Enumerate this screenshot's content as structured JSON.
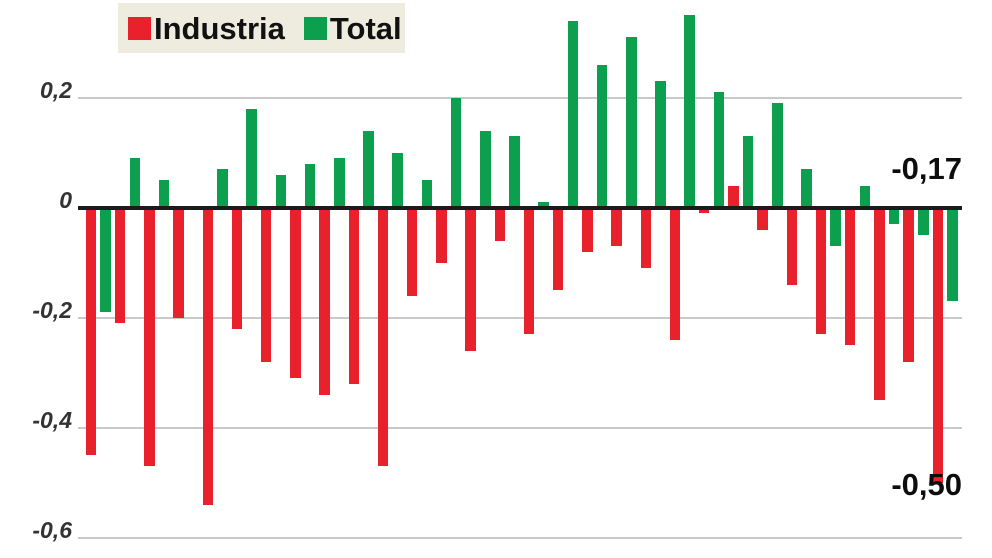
{
  "legend": {
    "items": [
      {
        "label": "Industria",
        "color": "#e8212c"
      },
      {
        "label": "Total",
        "color": "#0ca04e"
      }
    ]
  },
  "annotations": {
    "total_last": "-0,17",
    "industria_last": "-0,50"
  },
  "y_axis": {
    "ticks": [
      {
        "label": "0,2",
        "value": 0.2
      },
      {
        "label": "0",
        "value": 0.0
      },
      {
        "label": "-0,2",
        "value": -0.2
      },
      {
        "label": "-0,4",
        "value": -0.4
      },
      {
        "label": "-0,6",
        "value": -0.6
      }
    ]
  },
  "chart_data": {
    "type": "bar",
    "title": "",
    "xlabel": "",
    "ylabel": "",
    "ylim": [
      -0.6,
      0.35
    ],
    "grid": true,
    "legend_position": "top-left",
    "decimal_style": "comma",
    "x_labels_visible": false,
    "series": [
      {
        "name": "Industria",
        "color": "#e8212c",
        "values": [
          -0.45,
          -0.21,
          -0.47,
          -0.2,
          -0.54,
          -0.22,
          -0.28,
          -0.31,
          -0.34,
          -0.32,
          -0.47,
          -0.16,
          -0.1,
          -0.26,
          -0.06,
          -0.23,
          -0.15,
          -0.08,
          -0.07,
          -0.11,
          -0.24,
          -0.01,
          0.04,
          -0.04,
          -0.14,
          -0.23,
          -0.25,
          -0.35,
          -0.28,
          -0.5
        ]
      },
      {
        "name": "Total",
        "color": "#0ca04e",
        "values": [
          -0.19,
          0.09,
          0.05,
          0.0,
          0.07,
          0.18,
          0.06,
          0.08,
          0.09,
          0.14,
          0.1,
          0.05,
          0.2,
          0.14,
          0.13,
          0.01,
          0.34,
          0.26,
          0.31,
          0.23,
          0.35,
          0.21,
          0.13,
          0.19,
          0.07,
          -0.07,
          0.04,
          -0.03,
          -0.05,
          -0.17
        ]
      }
    ],
    "annotations": [
      {
        "text": "-0,17",
        "series": "Total",
        "point_index": 29
      },
      {
        "text": "-0,50",
        "series": "Industria",
        "point_index": 29
      }
    ]
  }
}
